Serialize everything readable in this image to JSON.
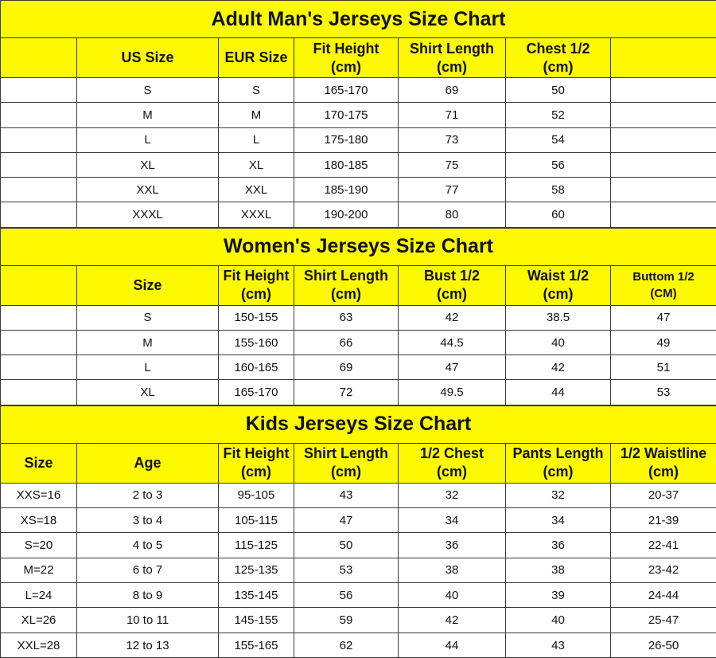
{
  "colors": {
    "header_bg": "#fdf900",
    "border": "#3a3a3a"
  },
  "sections": [
    {
      "id": "men",
      "title": "Adult Man's Jerseys Size Chart",
      "headers": [
        "",
        "US Size",
        "EUR Size",
        "Fit Height\n(cm)",
        "Shirt Length\n(cm)",
        "Chest 1/2\n(cm)",
        ""
      ],
      "rows": [
        [
          "",
          "S",
          "S",
          "165-170",
          "69",
          "50",
          ""
        ],
        [
          "",
          "M",
          "M",
          "170-175",
          "71",
          "52",
          ""
        ],
        [
          "",
          "L",
          "L",
          "175-180",
          "73",
          "54",
          ""
        ],
        [
          "",
          "XL",
          "XL",
          "180-185",
          "75",
          "56",
          ""
        ],
        [
          "",
          "XXL",
          "XXL",
          "185-190",
          "77",
          "58",
          ""
        ],
        [
          "",
          "XXXL",
          "XXXL",
          "190-200",
          "80",
          "60",
          ""
        ]
      ]
    },
    {
      "id": "women",
      "title": "Women's Jerseys Size Chart",
      "headers": [
        "",
        "Size",
        "Fit Height\n(cm)",
        "Shirt Length\n(cm)",
        "Bust 1/2\n(cm)",
        "Waist 1/2\n(cm)",
        "Buttom 1/2\n(CM)"
      ],
      "rows": [
        [
          "",
          "S",
          "150-155",
          "63",
          "42",
          "38.5",
          "47"
        ],
        [
          "",
          "M",
          "155-160",
          "66",
          "44.5",
          "40",
          "49"
        ],
        [
          "",
          "L",
          "160-165",
          "69",
          "47",
          "42",
          "51"
        ],
        [
          "",
          "XL",
          "165-170",
          "72",
          "49.5",
          "44",
          "53"
        ]
      ]
    },
    {
      "id": "kids",
      "title": "Kids Jerseys Size Chart",
      "headers": [
        "Size",
        "Age",
        "Fit Height\n(cm)",
        "Shirt Length\n(cm)",
        "1/2 Chest\n(cm)",
        "Pants Length\n(cm)",
        "1/2 Waistline\n(cm)"
      ],
      "rows": [
        [
          "XXS=16",
          "2 to 3",
          "95-105",
          "43",
          "32",
          "32",
          "20-37"
        ],
        [
          "XS=18",
          "3 to 4",
          "105-115",
          "47",
          "34",
          "34",
          "21-39"
        ],
        [
          "S=20",
          "4 to 5",
          "115-125",
          "50",
          "36",
          "36",
          "22-41"
        ],
        [
          "M=22",
          "6 to 7",
          "125-135",
          "53",
          "38",
          "38",
          "23-42"
        ],
        [
          "L=24",
          "8 to 9",
          "135-145",
          "56",
          "40",
          "39",
          "24-44"
        ],
        [
          "XL=26",
          "10 to 11",
          "145-155",
          "59",
          "42",
          "40",
          "25-47"
        ],
        [
          "XXL=28",
          "12 to 13",
          "155-165",
          "62",
          "44",
          "43",
          "26-50"
        ]
      ]
    }
  ]
}
